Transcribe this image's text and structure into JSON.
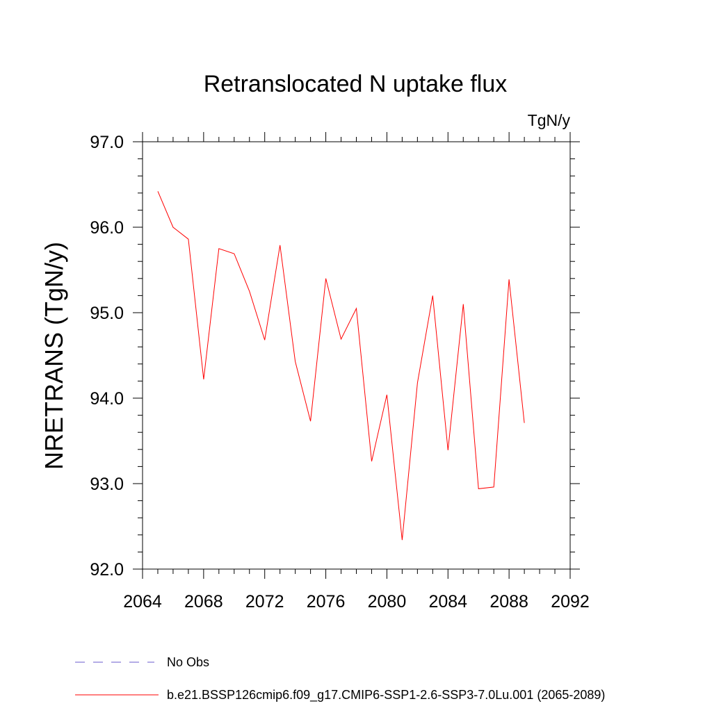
{
  "chart_data": {
    "type": "line",
    "title": "Retranslocated N uptake flux",
    "units": "TgN/y",
    "xlabel": "",
    "ylabel": "NRETRANS  (TgN/y)",
    "xlim": [
      2064,
      2092
    ],
    "ylim": [
      92.0,
      97.0
    ],
    "xticks": [
      2064,
      2068,
      2072,
      2076,
      2080,
      2084,
      2088,
      2092
    ],
    "yticks": [
      92.0,
      93.0,
      94.0,
      95.0,
      96.0,
      97.0
    ],
    "ytick_labels": [
      "92.0",
      "93.0",
      "94.0",
      "95.0",
      "96.0",
      "97.0"
    ],
    "grid": false,
    "legend_position": "bottom",
    "series": [
      {
        "name": "b.e21.BSSP126cmip6.f09_g17.CMIP6-SSP1-2.6-SSP3-7.0Lu.001 (2065-2089)",
        "color": "#ff0000",
        "dash": "solid",
        "x": [
          2065,
          2066,
          2067,
          2068,
          2069,
          2070,
          2071,
          2072,
          2073,
          2074,
          2075,
          2076,
          2077,
          2078,
          2079,
          2080,
          2081,
          2082,
          2083,
          2084,
          2085,
          2086,
          2087,
          2088,
          2089
        ],
        "y": [
          96.42,
          96.0,
          95.86,
          94.22,
          95.75,
          95.69,
          95.25,
          94.68,
          95.79,
          94.43,
          93.73,
          95.4,
          94.69,
          95.05,
          93.26,
          94.04,
          92.34,
          94.18,
          95.2,
          93.39,
          95.1,
          92.94,
          92.96,
          95.39,
          93.71
        ]
      }
    ],
    "legend": [
      {
        "label": "No Obs",
        "color": "#6a5acd",
        "dash": "dashed"
      },
      {
        "label": "b.e21.BSSP126cmip6.f09_g17.CMIP6-SSP1-2.6-SSP3-7.0Lu.001 (2065-2089)",
        "color": "#ff0000",
        "dash": "solid"
      }
    ]
  }
}
